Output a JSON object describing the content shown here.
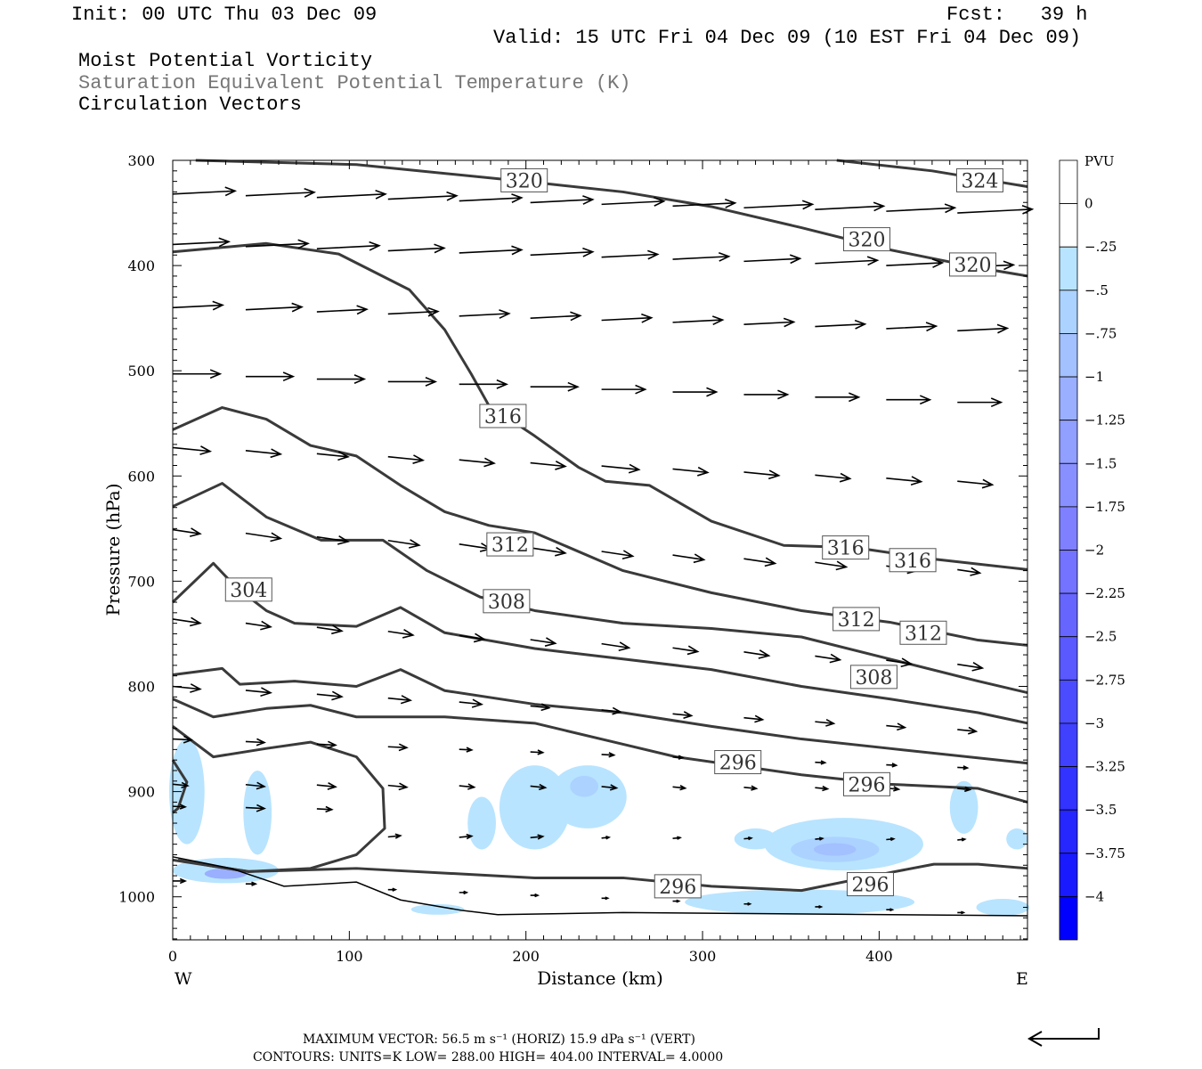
{
  "header": {
    "init": "Init: 00 UTC Thu 03 Dec 09",
    "fcst": "Fcst:   39 h",
    "valid": "Valid: 15 UTC Fri 04 Dec 09 (10 EST Fri 04 Dec 09)",
    "field1": "Moist Potential Vorticity",
    "field2": "Saturation Equivalent Potential Temperature (K)",
    "field3": "Circulation Vectors"
  },
  "footer": {
    "max_vector": "MAXIMUM VECTOR:  56.5 m s⁻¹ (HORIZ)        15.9 dPa s⁻¹ (VERT)",
    "contours": "CONTOURS:  UNITS=K  LOW=  288.00      HIGH=  404.00      INTERVAL=   4.0000"
  },
  "chart_data": {
    "type": "cross-section",
    "xlabel": "Distance (km)",
    "ylabel": "Pressure (hPa)",
    "xlim": [
      0,
      484
    ],
    "ylim": [
      1040,
      300
    ],
    "x_ticks": [
      "0",
      "100",
      "200",
      "300",
      "400"
    ],
    "y_ticks": [
      "300",
      "400",
      "500",
      "600",
      "700",
      "800",
      "900",
      "1000"
    ],
    "x_end_labels": {
      "left": "W",
      "right": "E"
    },
    "colorbar": {
      "title": "PVU",
      "labels": [
        "0",
        "-.25",
        "-.5",
        "-.75",
        "-1",
        "-1.25",
        "-1.5",
        "-1.75",
        "-2",
        "-2.25",
        "-2.5",
        "-2.75",
        "-3",
        "-3.25",
        "-3.5",
        "-3.75",
        "-4"
      ],
      "colors": [
        "#ffffff",
        "#ffffff",
        "#b8e4ff",
        "#acd2ff",
        "#a3c0ff",
        "#9aafff",
        "#919fff",
        "#8890ff",
        "#7f80ff",
        "#7373ff",
        "#6666ff",
        "#5959ff",
        "#4c4cff",
        "#4040ff",
        "#3333ff",
        "#2626ff",
        "#1a1aff",
        "#0000ff"
      ]
    },
    "isentropes": [
      {
        "pts": [
          [
            13,
            300
          ],
          [
            104,
            304
          ],
          [
            205,
            321
          ],
          [
            255,
            330
          ],
          [
            305,
            344
          ],
          [
            356,
            364
          ],
          [
            406,
            385
          ],
          [
            456,
            402
          ],
          [
            484,
            410
          ]
        ]
      },
      {
        "pts": [
          [
            376,
            300
          ],
          [
            430,
            310
          ],
          [
            484,
            325
          ]
        ]
      },
      {
        "pts": [
          [
            0,
            387
          ],
          [
            53,
            379
          ],
          [
            94,
            389
          ],
          [
            134,
            423
          ],
          [
            154,
            461
          ],
          [
            169,
            503
          ],
          [
            179,
            533
          ],
          [
            205,
            562
          ],
          [
            230,
            592
          ],
          [
            245,
            605
          ],
          [
            270,
            609
          ],
          [
            305,
            643
          ],
          [
            346,
            666
          ],
          [
            386,
            668
          ],
          [
            431,
            679
          ],
          [
            484,
            689
          ]
        ]
      },
      {
        "pts": [
          [
            0,
            556
          ],
          [
            28,
            535
          ],
          [
            53,
            546
          ],
          [
            78,
            571
          ],
          [
            104,
            581
          ],
          [
            129,
            609
          ],
          [
            154,
            634
          ],
          [
            179,
            647
          ],
          [
            205,
            654
          ],
          [
            255,
            690
          ],
          [
            305,
            711
          ],
          [
            356,
            728
          ],
          [
            406,
            739
          ],
          [
            456,
            756
          ],
          [
            484,
            761
          ]
        ]
      },
      {
        "pts": [
          [
            0,
            629
          ],
          [
            28,
            607
          ],
          [
            53,
            639
          ],
          [
            84,
            661
          ],
          [
            119,
            661
          ],
          [
            144,
            690
          ],
          [
            174,
            715
          ],
          [
            205,
            728
          ],
          [
            255,
            740
          ],
          [
            305,
            745
          ],
          [
            356,
            753
          ],
          [
            406,
            774
          ],
          [
            456,
            795
          ],
          [
            484,
            806
          ]
        ]
      },
      {
        "pts": [
          [
            0,
            720
          ],
          [
            23,
            683
          ],
          [
            36,
            706
          ],
          [
            53,
            728
          ],
          [
            69,
            740
          ],
          [
            104,
            743
          ],
          [
            129,
            725
          ],
          [
            154,
            749
          ],
          [
            205,
            764
          ],
          [
            255,
            774
          ],
          [
            305,
            784
          ],
          [
            356,
            800
          ],
          [
            406,
            812
          ],
          [
            456,
            825
          ],
          [
            484,
            835
          ]
        ]
      },
      {
        "pts": [
          [
            0,
            789
          ],
          [
            28,
            783
          ],
          [
            38,
            798
          ],
          [
            69,
            795
          ],
          [
            104,
            800
          ],
          [
            129,
            784
          ],
          [
            154,
            804
          ],
          [
            205,
            817
          ],
          [
            255,
            825
          ],
          [
            305,
            838
          ],
          [
            356,
            850
          ],
          [
            406,
            859
          ],
          [
            484,
            873
          ]
        ]
      },
      {
        "pts": [
          [
            0,
            812
          ],
          [
            23,
            829
          ],
          [
            53,
            821
          ],
          [
            78,
            818
          ],
          [
            104,
            829
          ],
          [
            154,
            829
          ],
          [
            205,
            835
          ],
          [
            255,
            855
          ],
          [
            285,
            867
          ],
          [
            356,
            884
          ],
          [
            406,
            893
          ],
          [
            456,
            897
          ],
          [
            484,
            910
          ]
        ]
      },
      {
        "pts": [
          [
            0,
            838
          ],
          [
            23,
            867
          ],
          [
            53,
            859
          ],
          [
            78,
            853
          ],
          [
            104,
            867
          ],
          [
            119,
            897
          ],
          [
            120,
            935
          ],
          [
            104,
            960
          ],
          [
            78,
            973
          ],
          [
            43,
            976
          ],
          [
            23,
            971
          ],
          [
            3,
            965
          ]
        ]
      },
      {
        "pts": [
          [
            0,
            965
          ],
          [
            43,
            976
          ],
          [
            104,
            973
          ],
          [
            205,
            982
          ],
          [
            255,
            982
          ],
          [
            305,
            990
          ],
          [
            356,
            994
          ],
          [
            406,
            977
          ],
          [
            431,
            969
          ],
          [
            456,
            969
          ],
          [
            484,
            973
          ]
        ]
      },
      {
        "pts": [
          [
            0,
            870
          ],
          [
            8,
            891
          ],
          [
            3,
            916
          ],
          [
            0,
            920
          ]
        ]
      }
    ],
    "terrain": [
      [
        0,
        962
      ],
      [
        33,
        973
      ],
      [
        63,
        990
      ],
      [
        104,
        986
      ],
      [
        129,
        1003
      ],
      [
        164,
        1013
      ],
      [
        184,
        1017
      ],
      [
        255,
        1015
      ],
      [
        484,
        1018
      ]
    ],
    "contour_labels": [
      {
        "text": "320",
        "x": 199,
        "p": 319
      },
      {
        "text": "324",
        "x": 457,
        "p": 319
      },
      {
        "text": "320",
        "x": 393,
        "p": 375
      },
      {
        "text": "320",
        "x": 453,
        "p": 399
      },
      {
        "text": "316",
        "x": 187,
        "p": 543
      },
      {
        "text": "316",
        "x": 381,
        "p": 668
      },
      {
        "text": "316",
        "x": 419,
        "p": 680
      },
      {
        "text": "312",
        "x": 191,
        "p": 665
      },
      {
        "text": "312",
        "x": 387,
        "p": 736
      },
      {
        "text": "312",
        "x": 425,
        "p": 749
      },
      {
        "text": "308",
        "x": 189,
        "p": 719
      },
      {
        "text": "308",
        "x": 397,
        "p": 791
      },
      {
        "text": "304",
        "x": 43,
        "p": 708
      },
      {
        "text": "296",
        "x": 320,
        "p": 872
      },
      {
        "text": "296",
        "x": 393,
        "p": 893
      },
      {
        "text": "296",
        "x": 286,
        "p": 990
      },
      {
        "text": "296",
        "x": 395,
        "p": 988
      }
    ],
    "pv_regions": [
      {
        "x": 8,
        "p": 900,
        "rx": 10,
        "rp": 50,
        "level": 1
      },
      {
        "x": 48,
        "p": 920,
        "rx": 8,
        "rp": 40,
        "level": 1
      },
      {
        "x": 30,
        "p": 975,
        "rx": 30,
        "rp": 12,
        "level": 1
      },
      {
        "x": 30,
        "p": 978,
        "rx": 12,
        "rp": 5,
        "level": 4
      },
      {
        "x": 175,
        "p": 930,
        "rx": 8,
        "rp": 25,
        "level": 1
      },
      {
        "x": 205,
        "p": 915,
        "rx": 20,
        "rp": 40,
        "level": 1
      },
      {
        "x": 235,
        "p": 905,
        "rx": 22,
        "rp": 30,
        "level": 1
      },
      {
        "x": 233,
        "p": 895,
        "rx": 8,
        "rp": 10,
        "level": 2
      },
      {
        "x": 380,
        "p": 950,
        "rx": 45,
        "rp": 25,
        "level": 1
      },
      {
        "x": 375,
        "p": 955,
        "rx": 25,
        "rp": 12,
        "level": 2
      },
      {
        "x": 375,
        "p": 955,
        "rx": 12,
        "rp": 6,
        "level": 3
      },
      {
        "x": 330,
        "p": 945,
        "rx": 12,
        "rp": 10,
        "level": 1
      },
      {
        "x": 355,
        "p": 1005,
        "rx": 65,
        "rp": 12,
        "level": 1
      },
      {
        "x": 448,
        "p": 915,
        "rx": 8,
        "rp": 25,
        "level": 1
      },
      {
        "x": 470,
        "p": 1010,
        "rx": 15,
        "rp": 8,
        "level": 1
      },
      {
        "x": 478,
        "p": 945,
        "rx": 6,
        "rp": 10,
        "level": 1
      },
      {
        "x": 150,
        "p": 1012,
        "rx": 15,
        "rp": 5,
        "level": 1
      }
    ],
    "vectors": {
      "x": [
        0,
        40.3,
        80.6,
        120.9,
        161.2,
        201.5,
        241.8,
        282.1,
        322.4,
        362.7,
        403,
        443.3
      ],
      "rows": [
        {
          "p": [
            332,
            350
          ],
          "u": [
            50,
            55,
            55,
            55,
            50,
            50,
            50,
            50,
            55,
            55,
            55,
            60
          ],
          "w": -1
        },
        {
          "p": [
            380,
            402
          ],
          "u": [
            45,
            50,
            50,
            45,
            50,
            50,
            45,
            45,
            45,
            50,
            45,
            45
          ],
          "w": -1
        },
        {
          "p": [
            440,
            462
          ],
          "u": [
            40,
            45,
            40,
            40,
            40,
            40,
            40,
            40,
            40,
            40,
            40,
            40
          ],
          "w": -1
        },
        {
          "p": [
            503,
            530
          ],
          "u": [
            38,
            38,
            38,
            38,
            38,
            38,
            35,
            35,
            35,
            35,
            35,
            35
          ],
          "w": 0
        },
        {
          "p": [
            573,
            605
          ],
          "u": [
            30,
            28,
            25,
            28,
            28,
            28,
            30,
            28,
            28,
            28,
            28,
            28
          ],
          "w": 2
        },
        {
          "p": [
            651,
            689
          ],
          "u": [
            22,
            28,
            25,
            25,
            25,
            28,
            25,
            25,
            25,
            25,
            25,
            18
          ],
          "w": 3
        },
        {
          "p": [
            736,
            779
          ],
          "u": [
            22,
            20,
            20,
            20,
            20,
            20,
            22,
            20,
            20,
            20,
            20,
            20
          ],
          "w": 3
        },
        {
          "p": [
            800,
            841
          ],
          "u": [
            22,
            20,
            20,
            18,
            18,
            15,
            15,
            15,
            15,
            15,
            15,
            15
          ],
          "w": 2
        },
        {
          "p": [
            850,
            877
          ],
          "u": [
            15,
            15,
            15,
            15,
            10,
            10,
            10,
            8,
            8,
            8,
            8,
            8
          ],
          "w": 1
        },
        {
          "p": [
            893,
            897
          ],
          "u": [
            12,
            15,
            15,
            15,
            12,
            12,
            12,
            10,
            10,
            10,
            10,
            10
          ],
          "w": 2
        },
        {
          "p": [
            914,
            927
          ],
          "u": [
            10,
            15,
            12,
            null,
            null,
            null,
            null,
            null,
            null,
            null,
            null,
            null
          ],
          "w": 1
        },
        {
          "p": [
            942,
            946
          ],
          "u": [
            null,
            null,
            null,
            10,
            10,
            10,
            6,
            6,
            6,
            6,
            6,
            6
          ],
          "w": -2
        },
        {
          "p": [
            985,
            1015
          ],
          "u": [
            10,
            8,
            null,
            6,
            6,
            6,
            5,
            5,
            5,
            5,
            5,
            5
          ],
          "w": 0
        }
      ]
    }
  }
}
